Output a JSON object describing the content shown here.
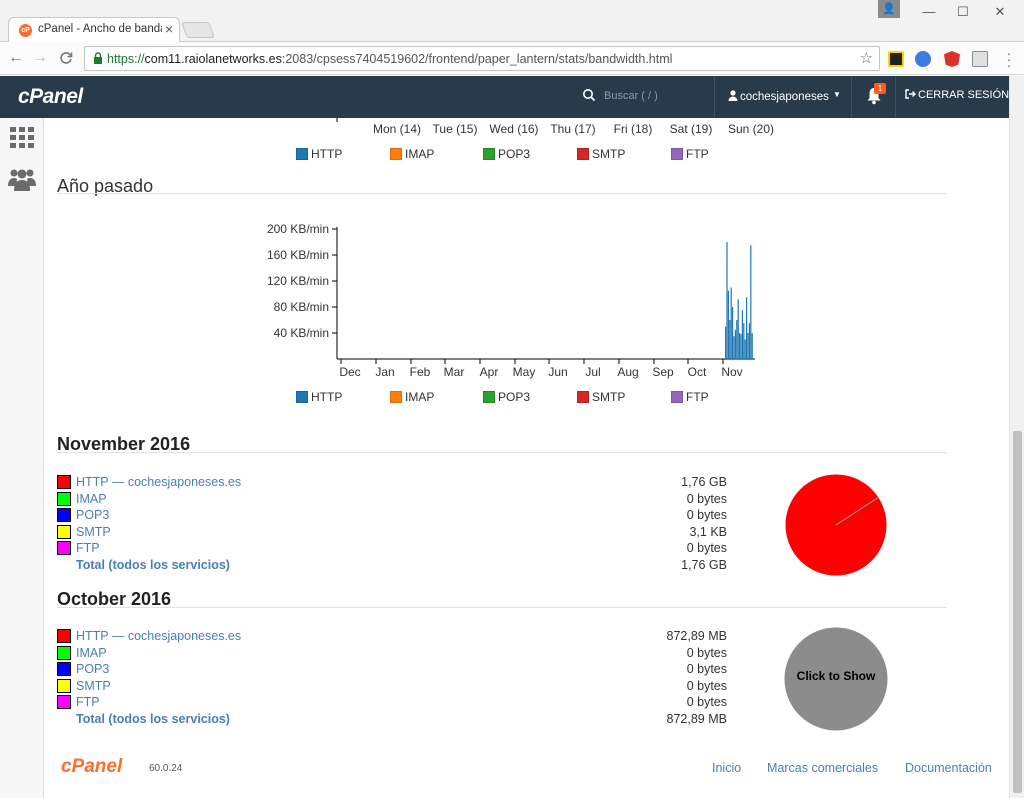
{
  "browser": {
    "tab_title": "cPanel - Ancho de banda",
    "tab_favicon_text": "cP",
    "url_scheme": "https://",
    "url_host": "com11.raiolanetworks.es",
    "url_path": ":2083/cpsess7404519602/frontend/paper_lantern/stats/bandwidth.html",
    "close_glyph": "×",
    "back_glyph": "←",
    "forward_glyph": "→",
    "reload_glyph": "C",
    "star_glyph": "☆",
    "min_glyph": "—",
    "max_glyph": "☐",
    "winclose_glyph": "✕",
    "user_glyph": "👤",
    "extensions": [
      {
        "name": "notion-extension-icon",
        "color": "#222222"
      },
      {
        "name": "shield-extension-icon",
        "color": "#3d7be0"
      },
      {
        "name": "angular-extension-icon",
        "color": "#d9312c"
      },
      {
        "name": "page-extension-icon",
        "color": "#8d8d8d"
      }
    ]
  },
  "header": {
    "logo": "cPanel",
    "search_placeholder": "Buscar ( / )",
    "username": "cochesjaponeses",
    "notification_count": "1",
    "logout_label": "CERRAR SESIÓN"
  },
  "weekly_axis": {
    "tick_labels": [
      "Mon (14)",
      "Tue (15)",
      "Wed (16)",
      "Thu (17)",
      "Fri (18)",
      "Sat (19)",
      "Sun (20)"
    ]
  },
  "legend": [
    {
      "label": "HTTP",
      "color": "#1f77b4"
    },
    {
      "label": "IMAP",
      "color": "#ff7f0e"
    },
    {
      "label": "POP3",
      "color": "#2ca02c"
    },
    {
      "label": "SMTP",
      "color": "#d62728"
    },
    {
      "label": "FTP",
      "color": "#9467bd"
    }
  ],
  "year_section": {
    "title": "Año pasado"
  },
  "chart_data": {
    "type": "bar",
    "title": "",
    "xlabel": "",
    "ylabel": "",
    "ylim": [
      0,
      200
    ],
    "y_ticks": [
      40,
      80,
      120,
      160,
      200
    ],
    "y_tick_labels": [
      "40 KB/min",
      "80 KB/min",
      "120 KB/min",
      "160 KB/min",
      "200 KB/min"
    ],
    "x_tick_labels": [
      "Dec",
      "Jan",
      "Feb",
      "Mar",
      "Apr",
      "May",
      "Jun",
      "Jul",
      "Aug",
      "Sep",
      "Oct",
      "Nov"
    ],
    "series": [
      {
        "name": "HTTP",
        "color": "#1f77b4",
        "x": [
          "2016-11-01",
          "2016-11-02",
          "2016-11-03",
          "2016-11-04",
          "2016-11-05",
          "2016-11-06",
          "2016-11-07",
          "2016-11-08",
          "2016-11-09",
          "2016-11-10",
          "2016-11-11",
          "2016-11-12",
          "2016-11-13",
          "2016-11-14",
          "2016-11-15",
          "2016-11-16",
          "2016-11-17",
          "2016-11-18",
          "2016-11-19",
          "2016-11-20"
        ],
        "values": [
          50,
          180,
          105,
          60,
          110,
          80,
          35,
          45,
          60,
          92,
          40,
          38,
          75,
          55,
          30,
          95,
          40,
          55,
          175,
          40
        ]
      }
    ],
    "grid": false,
    "legend_position": "bottom"
  },
  "months": [
    {
      "title": "November 2016",
      "rows": [
        {
          "label": "HTTP — cochesjaponeses.es",
          "value": "1,76 GB",
          "color": "#ff0000"
        },
        {
          "label": "IMAP",
          "value": "0 bytes",
          "color": "#00ff00"
        },
        {
          "label": "POP3",
          "value": "0 bytes",
          "color": "#0000ff"
        },
        {
          "label": "SMTP",
          "value": "3,1 KB",
          "color": "#ffff00"
        },
        {
          "label": "FTP",
          "value": "0 bytes",
          "color": "#ff00ff"
        }
      ],
      "total_label": "Total (todos los servicios)",
      "total_value": "1,76 GB"
    },
    {
      "title": "October 2016",
      "rows": [
        {
          "label": "HTTP — cochesjaponeses.es",
          "value": "872,89 MB",
          "color": "#ff0000"
        },
        {
          "label": "IMAP",
          "value": "0 bytes",
          "color": "#00ff00"
        },
        {
          "label": "POP3",
          "value": "0 bytes",
          "color": "#0000ff"
        },
        {
          "label": "SMTP",
          "value": "0 bytes",
          "color": "#ffff00"
        },
        {
          "label": "FTP",
          "value": "0 bytes",
          "color": "#ff00ff"
        }
      ],
      "total_label": "Total (todos los servicios)",
      "total_value": "872,89 MB",
      "pie_label": "Click to Show"
    }
  ],
  "footer": {
    "logo": "cPanel",
    "version": "60.0.24",
    "links": [
      "Inicio",
      "Marcas comerciales",
      "Documentación"
    ]
  }
}
